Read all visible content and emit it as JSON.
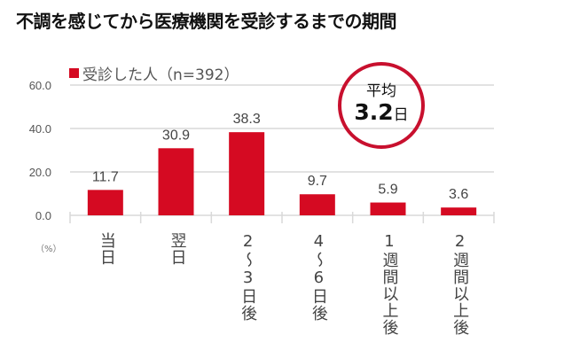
{
  "title": "不調を感じてから医療機関を受診するまでの期間",
  "average": {
    "label": "平均",
    "value": "3.2",
    "unit": "日"
  },
  "chart_data": {
    "type": "bar",
    "categories": [
      "当日",
      "翌日",
      "2～3日後",
      "4～6日後",
      "1週間以上後",
      "2週間以上後"
    ],
    "series": [
      {
        "name": "受診した人（n=392）",
        "values": [
          11.7,
          30.9,
          38.3,
          9.7,
          5.9,
          3.6
        ],
        "color": "#d50a22"
      }
    ],
    "ylim": [
      0,
      60
    ],
    "yticks": [
      "0.0",
      "20.0",
      "40.0",
      "60.0"
    ],
    "yunit": "（%）",
    "grid": true,
    "legend": "top-left"
  }
}
